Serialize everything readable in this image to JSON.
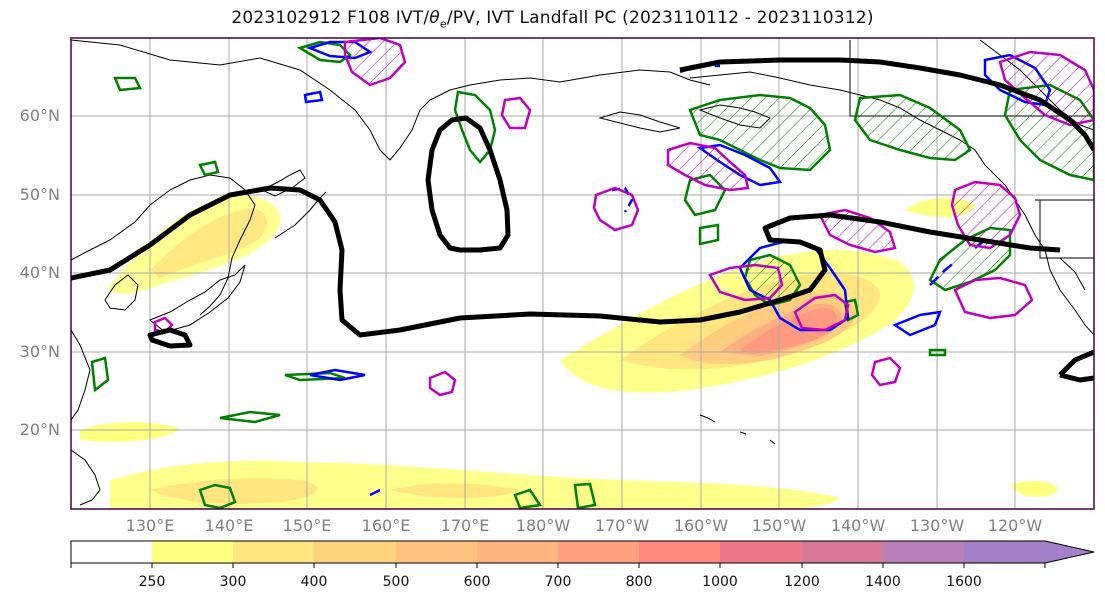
{
  "title": {
    "prefix": "2023102912 F108 IVT/",
    "theta": "θ",
    "theta_sub": "e",
    "suffix": "/PV, IVT Landfall PC (2023110112 - 2023110312)"
  },
  "lat_labels": [
    "60°N",
    "50°N",
    "40°N",
    "30°N",
    "20°N"
  ],
  "lon_labels": [
    "130°E",
    "140°E",
    "150°E",
    "160°E",
    "170°E",
    "180°W",
    "170°W",
    "160°W",
    "150°W",
    "140°W",
    "130°W",
    "120°W"
  ],
  "colorbar": {
    "ticks": [
      "250",
      "300",
      "400",
      "500",
      "600",
      "700",
      "800",
      "1000",
      "1200",
      "1400",
      "1600"
    ],
    "colors": [
      "#ffffff",
      "#ffff80",
      "#ffe680",
      "#ffcc80",
      "#ffc080",
      "#ffb080",
      "#ff9980",
      "#ff8080",
      "#ee7088",
      "#e07090",
      "#b080c0",
      "#a080c8"
    ]
  },
  "colors": {
    "contour_black": "#000000",
    "contour_green": "#008000",
    "contour_blue": "#0000ff",
    "contour_magenta": "#c000c0",
    "coast": "#000000",
    "grid": "#aaaaaa"
  }
}
